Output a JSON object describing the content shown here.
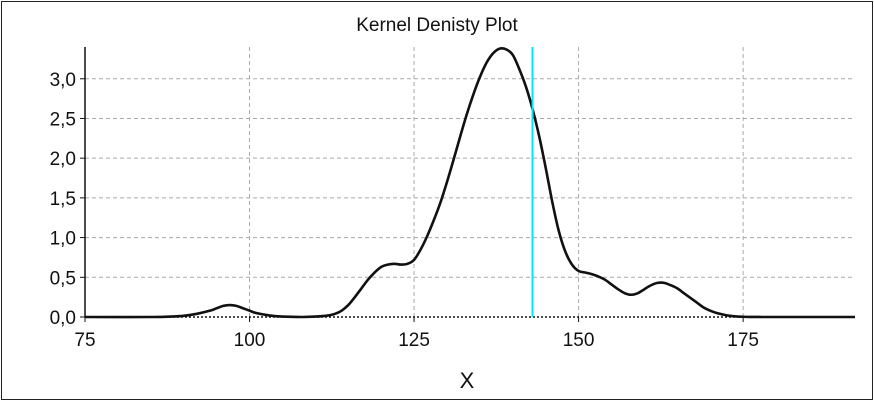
{
  "chart_data": {
    "type": "line",
    "title": "Kernel Denisty Plot",
    "xlabel": "X",
    "ylabel": "",
    "xlim": [
      75,
      192
    ],
    "ylim": [
      0,
      3.4
    ],
    "x_ticks": [
      75,
      100,
      125,
      150,
      175
    ],
    "x_tick_labels": [
      "75",
      "100",
      "125",
      "150",
      "175"
    ],
    "y_ticks": [
      0,
      0.5,
      1,
      1.5,
      2,
      2.5,
      3
    ],
    "y_tick_labels": [
      "0,0",
      "0,5",
      "1,0",
      "1,5",
      "2,0",
      "2,5",
      "3,0"
    ],
    "grid": true,
    "series": [
      {
        "color": "#111111",
        "x": [
          75,
          85,
          88,
          90,
          92,
          94,
          95,
          96,
          97,
          98,
          99,
          100,
          101,
          103,
          105,
          108,
          110,
          112,
          113,
          114,
          115,
          116,
          117,
          118,
          119,
          120,
          121,
          122,
          123,
          124,
          125,
          126,
          127,
          128,
          129,
          130,
          131,
          132,
          133,
          134,
          135,
          136,
          137,
          138,
          139,
          140,
          141,
          142,
          143,
          144,
          145,
          146,
          147,
          148,
          149,
          150,
          151,
          152,
          153,
          154,
          155,
          156,
          157,
          158,
          159,
          160,
          161,
          162,
          163,
          164,
          165,
          166,
          167,
          168,
          169,
          170,
          171,
          172,
          173,
          174,
          175,
          176,
          178,
          180,
          185,
          192
        ],
        "y": [
          0,
          0,
          0.005,
          0.015,
          0.04,
          0.08,
          0.11,
          0.14,
          0.15,
          0.14,
          0.11,
          0.08,
          0.05,
          0.02,
          0.005,
          0,
          0.005,
          0.02,
          0.04,
          0.08,
          0.15,
          0.25,
          0.36,
          0.47,
          0.56,
          0.63,
          0.66,
          0.67,
          0.66,
          0.67,
          0.72,
          0.85,
          1.02,
          1.22,
          1.44,
          1.7,
          1.98,
          2.27,
          2.55,
          2.8,
          3.02,
          3.2,
          3.32,
          3.38,
          3.37,
          3.3,
          3.12,
          2.9,
          2.62,
          2.28,
          1.88,
          1.45,
          1.08,
          0.82,
          0.66,
          0.58,
          0.56,
          0.54,
          0.51,
          0.47,
          0.41,
          0.35,
          0.3,
          0.28,
          0.3,
          0.35,
          0.4,
          0.43,
          0.43,
          0.4,
          0.36,
          0.3,
          0.24,
          0.18,
          0.12,
          0.08,
          0.05,
          0.03,
          0.015,
          0.007,
          0.003,
          0.001,
          0,
          0,
          0,
          0
        ]
      }
    ],
    "vertical_line": {
      "x": 143,
      "color": "#00e5ff"
    },
    "grid_color": "#aaaaaa",
    "background": "#ffffff"
  }
}
